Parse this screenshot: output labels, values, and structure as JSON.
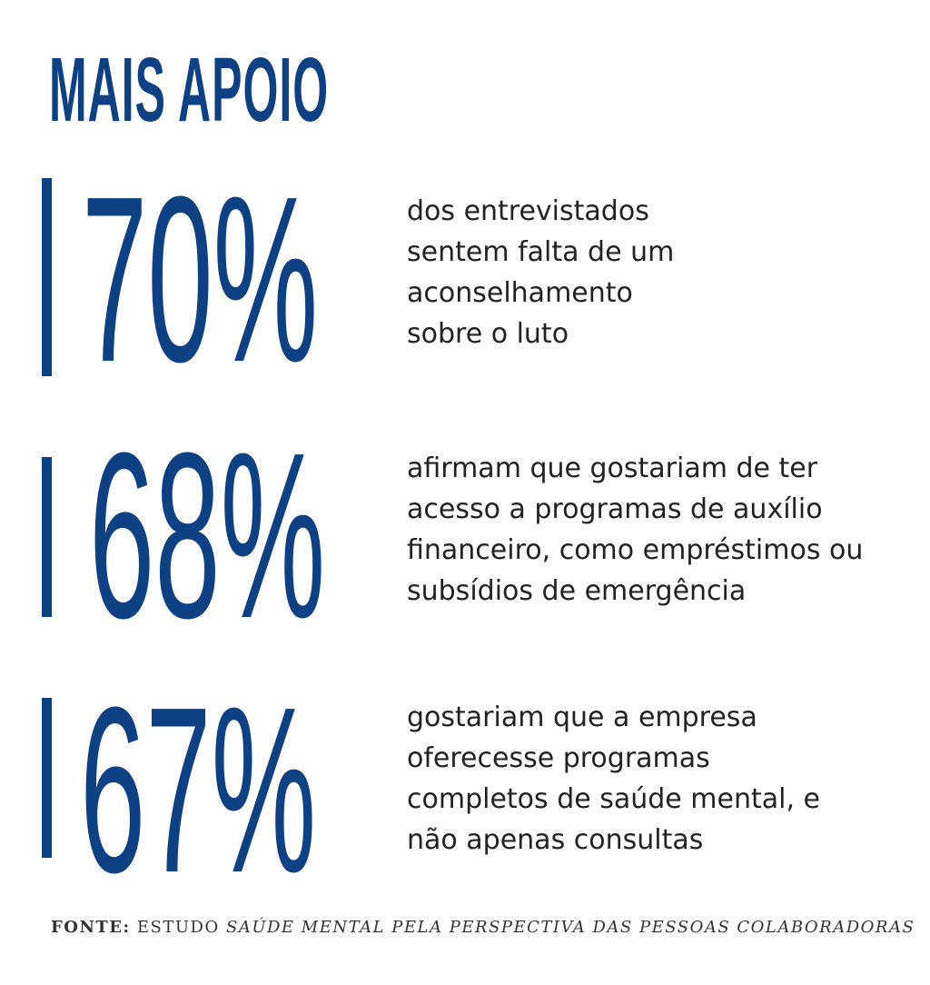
{
  "title": "MAIS APOIO",
  "stats": [
    {
      "value": "70%",
      "lines": [
        "dos entrevistados",
        "sentem falta de um",
        "aconselhamento",
        "sobre o luto"
      ]
    },
    {
      "value": "68%",
      "lines": [
        "afirmam que gostariam de ter",
        "acesso a programas de auxílio",
        "financeiro, como empréstimos ou",
        "subsídios de emergência"
      ]
    },
    {
      "value": "67%",
      "lines": [
        "gostariam que a empresa",
        "oferecesse programas",
        "completos de saúde mental, e",
        "não apenas consultas"
      ]
    }
  ],
  "source": {
    "label": "FONTE:",
    "prefix": "ESTUDO",
    "work": "SAÚDE MENTAL PELA PERSPECTIVA DAS PESSOAS COLABORADORAS"
  },
  "colors": {
    "accent": "#0e4183",
    "text": "#222222"
  }
}
